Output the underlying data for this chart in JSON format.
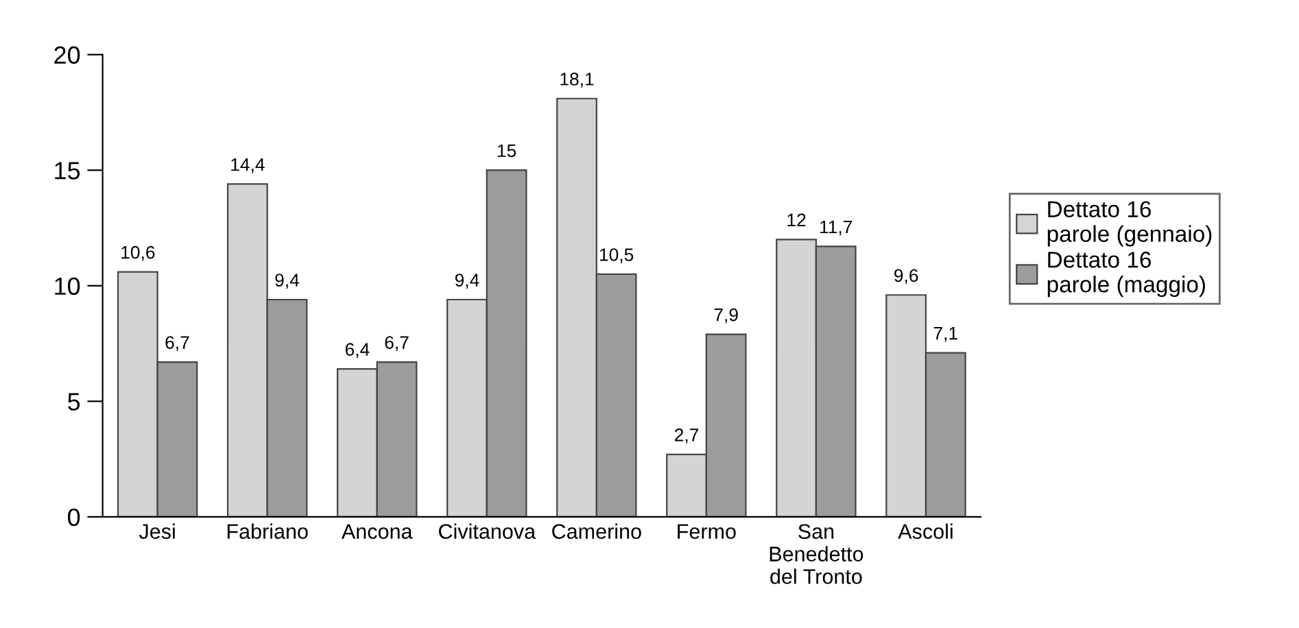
{
  "chart_data": {
    "type": "bar",
    "categories": [
      "Jesi",
      "Fabriano",
      "Ancona",
      "Civitanova",
      "Camerino",
      "Fermo",
      "San Benedetto del Tronto",
      "Ascoli"
    ],
    "series": [
      {
        "name": "Dettato 16 parole (gennaio)",
        "color": "#d4d4d4",
        "values": [
          10.6,
          14.4,
          6.4,
          9.4,
          18.1,
          2.7,
          12,
          9.6
        ],
        "value_labels": [
          "10,6",
          "14,4",
          "6,4",
          "9,4",
          "18,1",
          "2,7",
          "12",
          "9,6"
        ]
      },
      {
        "name": "Dettato 16 parole (maggio)",
        "color": "#9c9c9c",
        "values": [
          6.7,
          9.4,
          6.7,
          15,
          10.5,
          7.9,
          11.7,
          7.1
        ],
        "value_labels": [
          "6,7",
          "9,4",
          "6,7",
          "15",
          "10,5",
          "7,9",
          "11,7",
          "7,1"
        ]
      }
    ],
    "ylim": [
      0,
      20
    ],
    "yticks": [
      0,
      5,
      10,
      15,
      20
    ],
    "grid": false,
    "legend": "right"
  }
}
